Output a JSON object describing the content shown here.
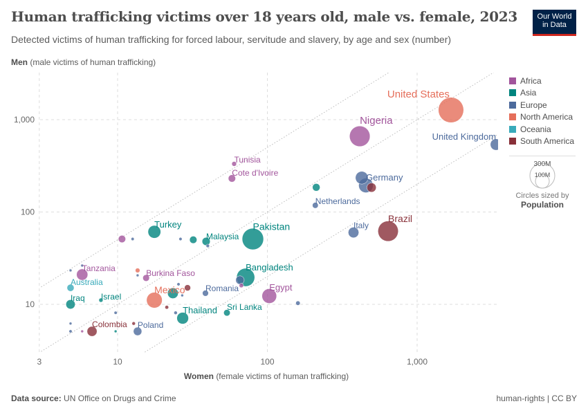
{
  "header": {
    "title": "Human trafficking victims over 18 years old, male vs. female, 2023",
    "subtitle": "Detected victims of human trafficking for forced labour, servitude and slavery, by age and sex (number)",
    "logo_line1": "Our World",
    "logo_line2": "in Data"
  },
  "footer": {
    "source_label": "Data source:",
    "source": "UN Office on Drugs and Crime",
    "license": "human-rights | CC BY"
  },
  "size_legend": {
    "big": "300M",
    "small": "100M",
    "caption": "Circles sized by",
    "variable": "Population"
  },
  "chart_data": {
    "type": "scatter",
    "title": "Human trafficking victims over 18 years old, male vs. female, 2023",
    "xlabel_bold": "Women",
    "xlabel_rest": "(female victims of human trafficking)",
    "ylabel_bold": "Men",
    "ylabel_rest": "(male victims of human trafficking)",
    "x_scale": "log",
    "y_scale": "log",
    "xlim": [
      3,
      3400
    ],
    "ylim": [
      3,
      3200
    ],
    "x_ticks": [
      {
        "v": 3,
        "label": "3"
      },
      {
        "v": 10,
        "label": "10"
      },
      {
        "v": 100,
        "label": "100"
      },
      {
        "v": 1000,
        "label": "1,000"
      }
    ],
    "y_ticks": [
      {
        "v": 10,
        "label": "10"
      },
      {
        "v": 100,
        "label": "100"
      },
      {
        "v": 1000,
        "label": "1,000"
      }
    ],
    "grid": true,
    "reference_lines_ratio": [
      5,
      1,
      0.2
    ],
    "legend_placement": "right",
    "colors": {
      "Africa": "#a2559c",
      "Asia": "#00847e",
      "Europe": "#4c6a9c",
      "North America": "#e56e5a",
      "Oceania": "#38aaba",
      "South America": "#883039"
    },
    "legend": [
      "Africa",
      "Asia",
      "Europe",
      "North America",
      "Oceania",
      "South America"
    ],
    "points": [
      {
        "label": "United States",
        "region": "North America",
        "x": 1683,
        "y": 1273,
        "pop": 335
      },
      {
        "label": "Nigeria",
        "region": "Africa",
        "x": 414,
        "y": 661,
        "pop": 220
      },
      {
        "label": "United Kingdom",
        "region": "Europe",
        "x": 3365,
        "y": 538,
        "pop": 68
      },
      {
        "label": "Tunisia",
        "region": "Africa",
        "x": 60,
        "y": 332,
        "pop": 12
      },
      {
        "label": "Cote d'Ivoire",
        "region": "Africa",
        "x": 58,
        "y": 231,
        "pop": 28
      },
      {
        "label": "Germany",
        "region": "Europe",
        "x": 427,
        "y": 235,
        "pop": 84
      },
      {
        "label": "",
        "region": "Europe",
        "x": 455,
        "y": 194,
        "pop": 110
      },
      {
        "label": "",
        "region": "South America",
        "x": 496,
        "y": 184,
        "pop": 45
      },
      {
        "label": "",
        "region": "Asia",
        "x": 212,
        "y": 185,
        "pop": 30
      },
      {
        "label": "Netherlands",
        "region": "Europe",
        "x": 209,
        "y": 118,
        "pop": 18
      },
      {
        "label": "Italy",
        "region": "Europe",
        "x": 376,
        "y": 60,
        "pop": 59
      },
      {
        "label": "Brazil",
        "region": "South America",
        "x": 640,
        "y": 62,
        "pop": 216
      },
      {
        "label": "Pakistan",
        "region": "Asia",
        "x": 80,
        "y": 51,
        "pop": 240
      },
      {
        "label": "Turkey",
        "region": "Asia",
        "x": 17.6,
        "y": 61,
        "pop": 85
      },
      {
        "label": "Malaysia",
        "region": "Asia",
        "x": 39,
        "y": 48,
        "pop": 34
      },
      {
        "label": "",
        "region": "Europe",
        "x": 40,
        "y": 43,
        "pop": 6
      },
      {
        "label": "",
        "region": "Asia",
        "x": 32,
        "y": 50,
        "pop": 28
      },
      {
        "label": "",
        "region": "Europe",
        "x": 26.3,
        "y": 51,
        "pop": 5
      },
      {
        "label": "",
        "region": "Europe",
        "x": 12.6,
        "y": 51,
        "pop": 5
      },
      {
        "label": "",
        "region": "Africa",
        "x": 10.7,
        "y": 51,
        "pop": 28
      },
      {
        "label": "Bangladesh",
        "region": "Asia",
        "x": 71.6,
        "y": 19.6,
        "pop": 172
      },
      {
        "label": "",
        "region": "Europe",
        "x": 65.6,
        "y": 18.3,
        "pop": 38
      },
      {
        "label": "",
        "region": "Africa",
        "x": 67,
        "y": 16,
        "pop": 10
      },
      {
        "label": "Romania",
        "region": "Europe",
        "x": 38.6,
        "y": 13.2,
        "pop": 19
      },
      {
        "label": "Egypt",
        "region": "Africa",
        "x": 103,
        "y": 12.3,
        "pop": 112
      },
      {
        "label": "",
        "region": "Europe",
        "x": 160,
        "y": 10.3,
        "pop": 10
      },
      {
        "label": "Sri Lanka",
        "region": "Asia",
        "x": 53.7,
        "y": 8.1,
        "pop": 22
      },
      {
        "label": "Thailand",
        "region": "Asia",
        "x": 27.2,
        "y": 7.08,
        "pop": 71
      },
      {
        "label": "Mexico",
        "region": "North America",
        "x": 17.6,
        "y": 11.1,
        "pop": 128
      },
      {
        "label": "",
        "region": "Asia",
        "x": 23.4,
        "y": 13.2,
        "pop": 60
      },
      {
        "label": "",
        "region": "South America",
        "x": 29.3,
        "y": 15.1,
        "pop": 20
      },
      {
        "label": "",
        "region": "Europe",
        "x": 25.5,
        "y": 16.5,
        "pop": 5
      },
      {
        "label": "",
        "region": "Europe",
        "x": 27,
        "y": 12.5,
        "pop": 4
      },
      {
        "label": "Burkina Faso",
        "region": "Africa",
        "x": 15.5,
        "y": 19.3,
        "pop": 23
      },
      {
        "label": "",
        "region": "North America",
        "x": 13.6,
        "y": 23.3,
        "pop": 11
      },
      {
        "label": "",
        "region": "Europe",
        "x": 13.6,
        "y": 20.6,
        "pop": 4
      },
      {
        "label": "Tanzania",
        "region": "Africa",
        "x": 5.8,
        "y": 21,
        "pop": 67
      },
      {
        "label": "",
        "region": "Europe",
        "x": 4.85,
        "y": 23.3,
        "pop": 4
      },
      {
        "label": "",
        "region": "Europe",
        "x": 5.8,
        "y": 26.3,
        "pop": 4
      },
      {
        "label": "Australia",
        "region": "Oceania",
        "x": 4.85,
        "y": 15.1,
        "pop": 26
      },
      {
        "label": "Iraq",
        "region": "Asia",
        "x": 4.85,
        "y": 10,
        "pop": 45
      },
      {
        "label": "Israel",
        "region": "Asia",
        "x": 7.74,
        "y": 11.1,
        "pop": 9
      },
      {
        "label": "",
        "region": "Europe",
        "x": 9.7,
        "y": 8.1,
        "pop": 5
      },
      {
        "label": "",
        "region": "South America",
        "x": 21.3,
        "y": 9.3,
        "pop": 7
      },
      {
        "label": "",
        "region": "Europe",
        "x": 24.4,
        "y": 8.1,
        "pop": 6
      },
      {
        "label": "Colombia",
        "region": "South America",
        "x": 6.75,
        "y": 5.1,
        "pop": 52
      },
      {
        "label": "",
        "region": "South America",
        "x": 12.8,
        "y": 6.2,
        "pop": 6
      },
      {
        "label": "Poland",
        "region": "Europe",
        "x": 13.6,
        "y": 5.1,
        "pop": 37
      },
      {
        "label": "",
        "region": "Europe",
        "x": 4.85,
        "y": 6.2,
        "pop": 3
      },
      {
        "label": "",
        "region": "Europe",
        "x": 4.85,
        "y": 5.1,
        "pop": 5
      },
      {
        "label": "",
        "region": "Africa",
        "x": 5.8,
        "y": 5.1,
        "pop": 2
      },
      {
        "label": "",
        "region": "Asia",
        "x": 9.7,
        "y": 5.1,
        "pop": 2
      }
    ]
  }
}
